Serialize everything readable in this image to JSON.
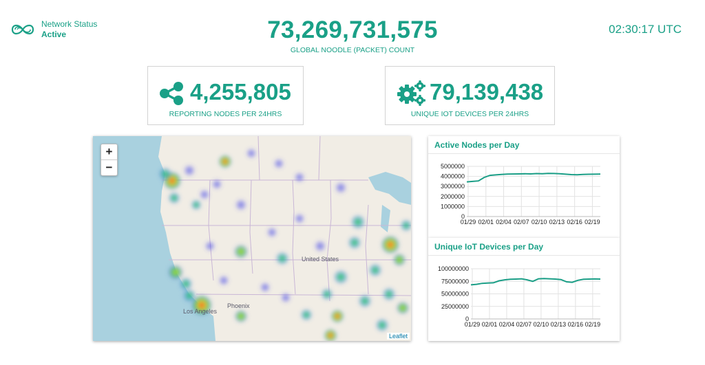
{
  "header": {
    "network_status_label": "Network Status",
    "network_status_value": "Active",
    "global_count": "73,269,731,575",
    "global_count_label": "GLOBAL NOODLE (PACKET) COUNT",
    "clock": "02:30:17 UTC"
  },
  "stats": {
    "nodes_value": "4,255,805",
    "nodes_label": "REPORTING NODES PER 24HRS",
    "nodes_icon": "share-icon",
    "devices_value": "79,139,438",
    "devices_label": "UNIQUE IOT DEVICES PER 24HRS",
    "devices_icon": "gears-icon"
  },
  "map": {
    "zoom_in": "+",
    "zoom_out": "−",
    "labels": {
      "country": "United States",
      "city1": "Phoenix",
      "city2": "Los Angeles"
    },
    "attribution": "Leaflet"
  },
  "colors": {
    "accent": "#1aa087",
    "line": "#1a9e86"
  },
  "chart_data": [
    {
      "type": "line",
      "title": "Active Nodes per Day",
      "x_ticks": [
        "01/29",
        "02/01",
        "02/04",
        "02/07",
        "02/10",
        "02/13",
        "02/16",
        "02/19"
      ],
      "y_ticks": [
        "5000000",
        "4000000",
        "3000000",
        "2000000",
        "1000000",
        "0"
      ],
      "ylim": [
        0,
        5000000
      ],
      "series": [
        {
          "values": [
            3450000,
            3500000,
            3550000,
            3900000,
            4100000,
            4150000,
            4200000,
            4230000,
            4240000,
            4250000,
            4260000,
            4250000,
            4280000,
            4260000,
            4300000,
            4290000,
            4260000,
            4220000,
            4180000,
            4160000,
            4200000,
            4210000,
            4220000,
            4230000
          ]
        }
      ],
      "grid": true
    },
    {
      "type": "line",
      "title": "Unique IoT Devices per Day",
      "x_ticks": [
        "01/29",
        "02/01",
        "02/04",
        "02/07",
        "02/10",
        "02/13",
        "02/16",
        "02/19"
      ],
      "y_ticks": [
        "100000000",
        "75000000",
        "50000000",
        "25000000",
        "0"
      ],
      "ylim": [
        0,
        100000000
      ],
      "series": [
        {
          "values": [
            68000000,
            69000000,
            71000000,
            71500000,
            72000000,
            76000000,
            78000000,
            79000000,
            79500000,
            80000000,
            78000000,
            75000000,
            80000000,
            80500000,
            80000000,
            79500000,
            78500000,
            74000000,
            73000000,
            77000000,
            79000000,
            79500000,
            79800000,
            79500000
          ]
        }
      ],
      "grid": true
    }
  ]
}
